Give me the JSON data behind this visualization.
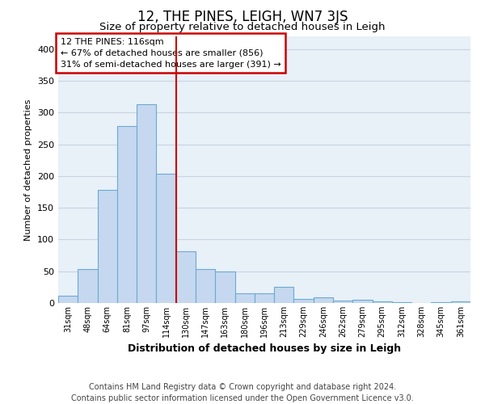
{
  "title": "12, THE PINES, LEIGH, WN7 3JS",
  "subtitle": "Size of property relative to detached houses in Leigh",
  "xlabel": "Distribution of detached houses by size in Leigh",
  "ylabel": "Number of detached properties",
  "footer_line1": "Contains HM Land Registry data © Crown copyright and database right 2024.",
  "footer_line2": "Contains public sector information licensed under the Open Government Licence v3.0.",
  "annotation_line1": "12 THE PINES: 116sqm",
  "annotation_line2": "← 67% of detached houses are smaller (856)",
  "annotation_line3": "31% of semi-detached houses are larger (391) →",
  "bar_labels": [
    "31sqm",
    "48sqm",
    "64sqm",
    "81sqm",
    "97sqm",
    "114sqm",
    "130sqm",
    "147sqm",
    "163sqm",
    "180sqm",
    "196sqm",
    "213sqm",
    "229sqm",
    "246sqm",
    "262sqm",
    "279sqm",
    "295sqm",
    "312sqm",
    "328sqm",
    "345sqm",
    "361sqm"
  ],
  "bar_values": [
    12,
    53,
    178,
    279,
    313,
    204,
    82,
    53,
    50,
    15,
    15,
    25,
    6,
    9,
    4,
    5,
    2,
    1,
    0,
    1,
    3
  ],
  "bar_color": "#c5d8ef",
  "bar_edge_color": "#6aaad4",
  "vline_x_index": 5,
  "vline_color": "#cc0000",
  "annotation_box_color": "#cc0000",
  "ylim": [
    0,
    420
  ],
  "yticks": [
    0,
    50,
    100,
    150,
    200,
    250,
    300,
    350,
    400
  ],
  "grid_color": "#c8d4e0",
  "background_color": "#e8f0f8",
  "title_fontsize": 12,
  "subtitle_fontsize": 9.5,
  "annotation_fontsize": 8,
  "xlabel_fontsize": 9,
  "ylabel_fontsize": 8,
  "footer_fontsize": 7
}
